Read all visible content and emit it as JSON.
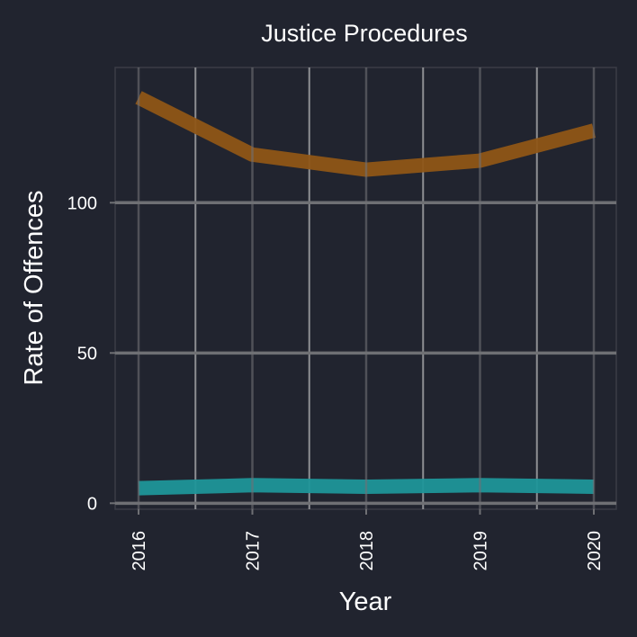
{
  "chart_data": {
    "type": "line",
    "title": "Justice Procedures",
    "xlabel": "Year",
    "ylabel": "Rate of Offences",
    "x": [
      "2016",
      "2017",
      "2018",
      "2019",
      "2020"
    ],
    "yticks": [
      "0",
      "50",
      "100"
    ],
    "ylim": [
      -2,
      145
    ],
    "grid": true,
    "series": [
      {
        "values": [
          135,
          116,
          111,
          114,
          124
        ],
        "color": "#8f5616"
      },
      {
        "values": [
          5,
          6,
          5.5,
          6,
          5.5
        ],
        "color": "#1f9699"
      }
    ]
  },
  "colors": {
    "background": "#21242f",
    "panel_border": "#3a3d47",
    "major_grid": "#6f7074",
    "minor_grid": "#8e8f93",
    "text": "#ffffff"
  }
}
